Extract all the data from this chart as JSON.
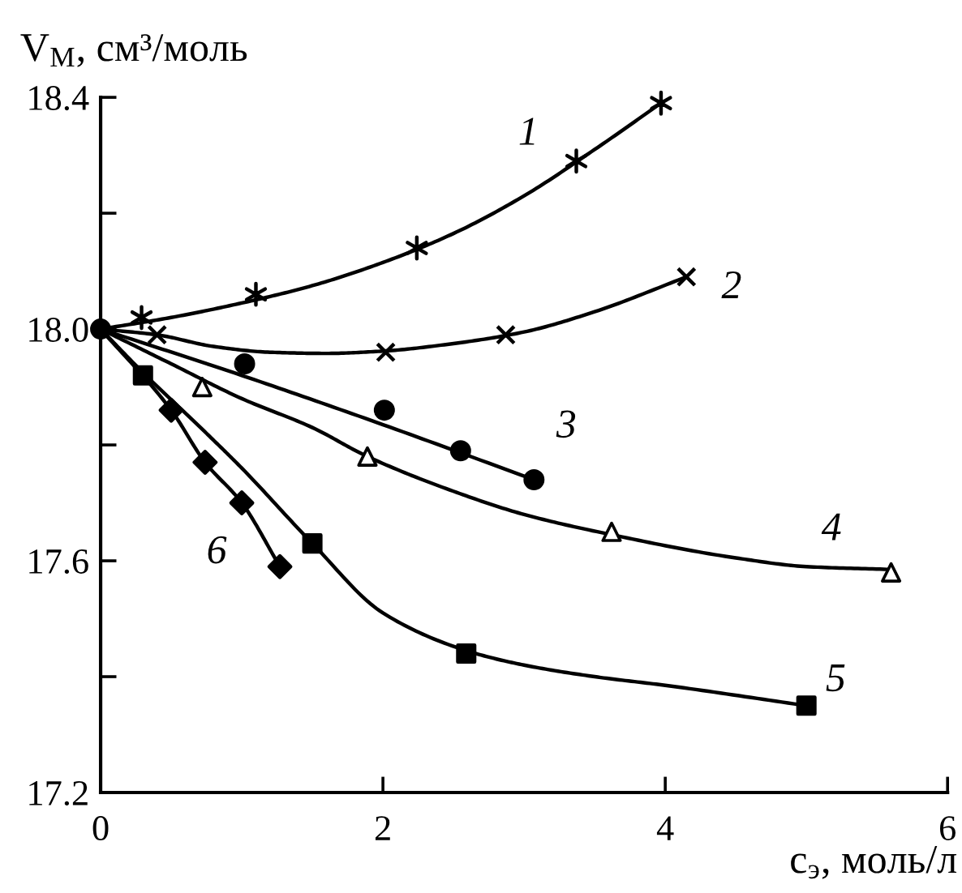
{
  "chart_data": {
    "type": "scatter",
    "xlabel": "c$_{э}$, моль/л",
    "ylabel": "V$_{М}$, см³/моль",
    "xlim": [
      0,
      6
    ],
    "ylim": [
      17.2,
      18.4
    ],
    "xticks": [
      0,
      2,
      4,
      6
    ],
    "yticks": [
      17.2,
      {
        "value": 17.4,
        "label": null
      },
      17.6,
      {
        "value": 17.8,
        "label": null
      },
      {
        "value": 18,
        "label": "18.0"
      },
      {
        "value": 18.2,
        "label": null
      },
      18.4
    ],
    "grid": false,
    "series": [
      {
        "color": "#000000",
        "x": [
          0.29,
          1.1,
          2.24,
          3.37,
          3.97
        ],
        "values": [
          18.02,
          18.06,
          18.14,
          18.29,
          18.39
        ]
      },
      {
        "color": "#000000",
        "marker": "cross",
        "x": [
          0.4,
          2.02,
          2.87,
          4.15
        ],
        "values": [
          17.99,
          17.96,
          17.99,
          18.09
        ]
      },
      {
        "color": "#000000",
        "marker": "circle",
        "x": [
          0,
          1.02,
          2.01,
          2.55,
          3.07
        ],
        "values": [
          18.0,
          17.94,
          17.86,
          17.79,
          17.74
        ]
      },
      {
        "color": "#000000",
        "marker": "triangle",
        "x": [
          0.72,
          1.89,
          3.62,
          5.6
        ],
        "values": [
          17.9,
          17.78,
          17.65,
          17.58
        ]
      },
      {
        "color": "#000000",
        "marker": "square",
        "x": [
          0.3,
          1.5,
          2.59,
          5.0
        ],
        "values": [
          17.92,
          17.63,
          17.44,
          17.35
        ]
      },
      {
        "color": "#000000",
        "marker": "diamond",
        "x": [
          0.5,
          0.74,
          1.0,
          1.27
        ],
        "values": [
          17.86,
          17.77,
          17.7,
          17.59
        ]
      },
      {
        "type": "line",
        "color": "#000000",
        "marker": "none",
        "line_style": "solid",
        "x": [
          0,
          0.5,
          1.0,
          1.5,
          2.0,
          2.5,
          3.0,
          3.5,
          3.97
        ],
        "values": [
          18.0,
          18.02,
          18.045,
          18.075,
          18.115,
          18.165,
          18.23,
          18.31,
          18.39
        ]
      },
      {
        "type": "line",
        "color": "#000000",
        "marker": "none",
        "line_style": "solid",
        "x": [
          0,
          0.4,
          0.8,
          1.2,
          1.6,
          2.0,
          2.5,
          3.0,
          3.5,
          4.15
        ],
        "values": [
          18.0,
          17.99,
          17.97,
          17.96,
          17.958,
          17.962,
          17.975,
          17.995,
          18.03,
          18.09
        ]
      },
      {
        "type": "line",
        "color": "#000000",
        "marker": "none",
        "line_style": "solid",
        "x": [
          0,
          1.0,
          2.0,
          3.07
        ],
        "values": [
          18.0,
          17.92,
          17.835,
          17.74
        ]
      },
      {
        "type": "line",
        "color": "#000000",
        "marker": "none",
        "line_style": "solid",
        "x": [
          0,
          0.5,
          1.0,
          1.5,
          1.89,
          2.5,
          3.0,
          3.62,
          4.5,
          5.0,
          5.6
        ],
        "values": [
          18.0,
          17.94,
          17.88,
          17.83,
          17.78,
          17.72,
          17.68,
          17.645,
          17.605,
          17.59,
          17.585
        ]
      },
      {
        "type": "line",
        "color": "#000000",
        "marker": "none",
        "line_style": "solid",
        "x": [
          0,
          0.3,
          0.75,
          1.0,
          1.5,
          2.0,
          2.59,
          3.0,
          3.5,
          4.0,
          5.0
        ],
        "values": [
          18.0,
          17.925,
          17.82,
          17.76,
          17.63,
          17.51,
          17.445,
          17.42,
          17.4,
          17.385,
          17.35
        ]
      },
      {
        "type": "line",
        "color": "#000000",
        "marker": "none",
        "line_style": "solid",
        "x": [
          0,
          0.5,
          0.74,
          1.0,
          1.27
        ],
        "values": [
          18.0,
          17.86,
          17.77,
          17.7,
          17.59
        ]
      }
    ],
    "annotations": [
      "1",
      "2",
      "3",
      "4",
      "5",
      "6"
    ]
  }
}
